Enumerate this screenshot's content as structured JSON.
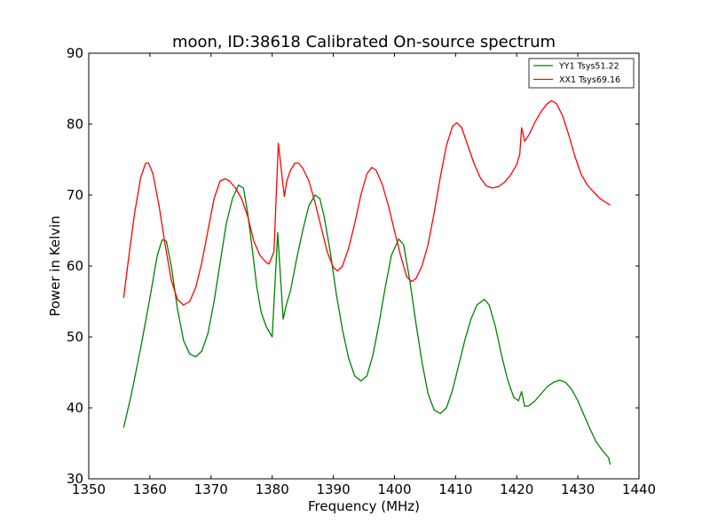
{
  "chart_data": {
    "type": "line",
    "title": "moon, ID:38618 Calibrated On-source spectrum",
    "xlabel": "Frequency (MHz)",
    "ylabel": "Power in Kelvin",
    "xlim": [
      1350,
      1440
    ],
    "ylim": [
      30,
      90
    ],
    "xticks": [
      1350,
      1360,
      1370,
      1380,
      1390,
      1400,
      1410,
      1420,
      1430,
      1440
    ],
    "yticks": [
      30,
      40,
      50,
      60,
      70,
      80,
      90
    ],
    "grid": false,
    "legend_position": "top-right",
    "series": [
      {
        "name": "YY1 Tsys51.22",
        "color": "#008000",
        "points": [
          [
            1355.7,
            37.2
          ],
          [
            1357,
            42
          ],
          [
            1358.5,
            48.5
          ],
          [
            1360,
            55.5
          ],
          [
            1361.2,
            61.5
          ],
          [
            1362,
            63.7
          ],
          [
            1362.7,
            63.5
          ],
          [
            1363.5,
            60
          ],
          [
            1364.5,
            54
          ],
          [
            1365.5,
            49.5
          ],
          [
            1366.5,
            47.6
          ],
          [
            1367.5,
            47.2
          ],
          [
            1368.5,
            48
          ],
          [
            1369.5,
            50.5
          ],
          [
            1370.5,
            55
          ],
          [
            1371.5,
            60.5
          ],
          [
            1372.5,
            66
          ],
          [
            1373.5,
            69.5
          ],
          [
            1374.5,
            71.4
          ],
          [
            1375.3,
            71
          ],
          [
            1376,
            67.5
          ],
          [
            1376.8,
            62
          ],
          [
            1377.5,
            57
          ],
          [
            1378.2,
            53.5
          ],
          [
            1379,
            51.5
          ],
          [
            1380,
            50
          ],
          [
            1380.9,
            64.7
          ],
          [
            1381.8,
            52.5
          ],
          [
            1382.3,
            54.5
          ],
          [
            1383,
            56.5
          ],
          [
            1384,
            61
          ],
          [
            1385,
            65
          ],
          [
            1386,
            68.5
          ],
          [
            1387,
            70
          ],
          [
            1387.8,
            69.5
          ],
          [
            1388.5,
            67
          ],
          [
            1389.5,
            62
          ],
          [
            1390.5,
            56
          ],
          [
            1391.5,
            51
          ],
          [
            1392.5,
            47
          ],
          [
            1393.5,
            44.5
          ],
          [
            1394.5,
            43.8
          ],
          [
            1395.5,
            44.5
          ],
          [
            1396.5,
            47.5
          ],
          [
            1397.5,
            52
          ],
          [
            1398.5,
            57
          ],
          [
            1399.5,
            61.5
          ],
          [
            1400.7,
            63.8
          ],
          [
            1401.5,
            63
          ],
          [
            1402.5,
            58
          ],
          [
            1403.5,
            52
          ],
          [
            1404.5,
            46.5
          ],
          [
            1405.5,
            42
          ],
          [
            1406.5,
            39.7
          ],
          [
            1407.5,
            39.2
          ],
          [
            1408.5,
            40
          ],
          [
            1409.5,
            42.5
          ],
          [
            1410.5,
            46
          ],
          [
            1411.5,
            49.5
          ],
          [
            1412.5,
            52.5
          ],
          [
            1413.5,
            54.5
          ],
          [
            1414.7,
            55.3
          ],
          [
            1415.5,
            54.5
          ],
          [
            1416.5,
            51.5
          ],
          [
            1417.5,
            47.5
          ],
          [
            1418.5,
            44
          ],
          [
            1419.5,
            41.5
          ],
          [
            1420.3,
            41
          ],
          [
            1420.8,
            42.3
          ],
          [
            1421.3,
            40.2
          ],
          [
            1422,
            40.3
          ],
          [
            1423,
            41
          ],
          [
            1424,
            42
          ],
          [
            1425,
            43
          ],
          [
            1426,
            43.6
          ],
          [
            1427,
            43.9
          ],
          [
            1428,
            43.6
          ],
          [
            1429,
            42.6
          ],
          [
            1430,
            41
          ],
          [
            1431,
            39
          ],
          [
            1432,
            37
          ],
          [
            1433,
            35.2
          ],
          [
            1434,
            34
          ],
          [
            1435,
            33
          ],
          [
            1435.3,
            32
          ]
        ]
      },
      {
        "name": "XX1 Tsys69.16",
        "color": "#ff0000",
        "points": [
          [
            1355.7,
            55.5
          ],
          [
            1356.5,
            61
          ],
          [
            1357.5,
            67.5
          ],
          [
            1358.5,
            72.5
          ],
          [
            1359.3,
            74.5
          ],
          [
            1359.8,
            74.5
          ],
          [
            1360.5,
            73
          ],
          [
            1361.5,
            68.5
          ],
          [
            1362.5,
            63
          ],
          [
            1363.5,
            58
          ],
          [
            1364.5,
            55.3
          ],
          [
            1365.5,
            54.5
          ],
          [
            1366.5,
            55
          ],
          [
            1367.5,
            57
          ],
          [
            1368.5,
            60.5
          ],
          [
            1369.5,
            65
          ],
          [
            1370.5,
            69.5
          ],
          [
            1371.5,
            72
          ],
          [
            1372.3,
            72.3
          ],
          [
            1373,
            72
          ],
          [
            1374,
            71
          ],
          [
            1375,
            69.5
          ],
          [
            1376,
            67
          ],
          [
            1377,
            63.5
          ],
          [
            1378,
            61.5
          ],
          [
            1379,
            60.5
          ],
          [
            1379.5,
            60.3
          ],
          [
            1380.3,
            62
          ],
          [
            1381,
            77.3
          ],
          [
            1381.5,
            73.5
          ],
          [
            1382,
            69.8
          ],
          [
            1382.4,
            72
          ],
          [
            1383,
            73.5
          ],
          [
            1383.7,
            74.5
          ],
          [
            1384.3,
            74.5
          ],
          [
            1385,
            73.8
          ],
          [
            1386,
            72
          ],
          [
            1387,
            69
          ],
          [
            1388,
            65.5
          ],
          [
            1389,
            62
          ],
          [
            1390,
            59.8
          ],
          [
            1390.7,
            59.3
          ],
          [
            1391.5,
            60
          ],
          [
            1392.5,
            62.5
          ],
          [
            1393.5,
            66
          ],
          [
            1394.5,
            70
          ],
          [
            1395.5,
            73
          ],
          [
            1396.3,
            73.9
          ],
          [
            1397,
            73.5
          ],
          [
            1398,
            71.5
          ],
          [
            1399,
            68.5
          ],
          [
            1400,
            65
          ],
          [
            1401,
            61.5
          ],
          [
            1402,
            58.5
          ],
          [
            1402.8,
            57.8
          ],
          [
            1403.5,
            58.2
          ],
          [
            1404.5,
            60
          ],
          [
            1405.5,
            63
          ],
          [
            1406.5,
            67.5
          ],
          [
            1407.5,
            72.5
          ],
          [
            1408.5,
            77
          ],
          [
            1409.5,
            79.7
          ],
          [
            1410.2,
            80.2
          ],
          [
            1411,
            79.5
          ],
          [
            1412,
            77
          ],
          [
            1413,
            74.5
          ],
          [
            1414,
            72.5
          ],
          [
            1415,
            71.3
          ],
          [
            1416,
            71
          ],
          [
            1417,
            71.2
          ],
          [
            1418,
            71.8
          ],
          [
            1419,
            72.8
          ],
          [
            1420,
            74.3
          ],
          [
            1420.5,
            75.8
          ],
          [
            1420.8,
            79.5
          ],
          [
            1421.3,
            77.6
          ],
          [
            1422,
            78.5
          ],
          [
            1423,
            80.3
          ],
          [
            1424,
            81.8
          ],
          [
            1425,
            82.9
          ],
          [
            1425.7,
            83.3
          ],
          [
            1426.5,
            82.9
          ],
          [
            1427.5,
            81.2
          ],
          [
            1428.5,
            78.5
          ],
          [
            1429.5,
            75.5
          ],
          [
            1430.5,
            73
          ],
          [
            1431.5,
            71.5
          ],
          [
            1432.5,
            70.5
          ],
          [
            1433.5,
            69.6
          ],
          [
            1434.5,
            69
          ],
          [
            1435.3,
            68.6
          ]
        ]
      }
    ]
  }
}
